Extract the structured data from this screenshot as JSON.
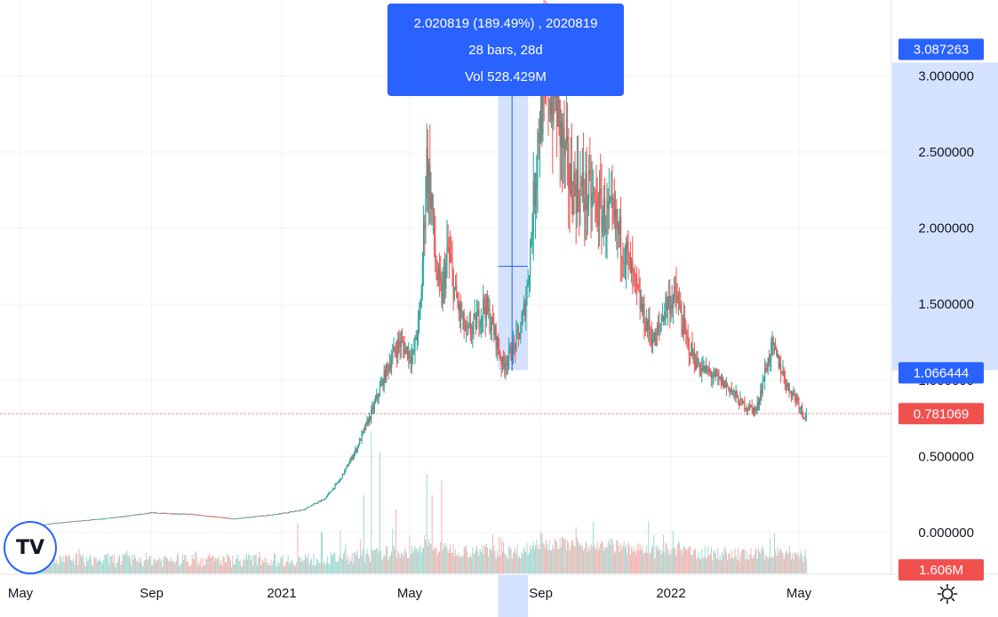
{
  "chart_data": {
    "type": "candlestick",
    "price_axis": {
      "ticks": [
        "3.000000",
        "2.500000",
        "2.000000",
        "1.500000",
        "1.000000",
        "0.500000",
        "0.000000"
      ],
      "tick_values": [
        3.0,
        2.5,
        2.0,
        1.5,
        1.0,
        0.5,
        0.0
      ],
      "ylim": [
        -0.22,
        3.35
      ]
    },
    "time_axis": {
      "labels": [
        "May",
        "Sep",
        "2021",
        "May",
        "Sep",
        "2022",
        "May"
      ],
      "label_days": [
        0,
        123,
        245,
        365,
        488,
        610,
        730
      ]
    },
    "price_path": [
      [
        0,
        0.03
      ],
      [
        30,
        0.06
      ],
      [
        60,
        0.08
      ],
      [
        90,
        0.1
      ],
      [
        123,
        0.13
      ],
      [
        160,
        0.12
      ],
      [
        200,
        0.09
      ],
      [
        240,
        0.12
      ],
      [
        265,
        0.15
      ],
      [
        285,
        0.22
      ],
      [
        300,
        0.35
      ],
      [
        315,
        0.55
      ],
      [
        330,
        0.8
      ],
      [
        345,
        1.1
      ],
      [
        355,
        1.25
      ],
      [
        362,
        1.2
      ],
      [
        368,
        1.15
      ],
      [
        375,
        1.45
      ],
      [
        381,
        2.45
      ],
      [
        385,
        2.2
      ],
      [
        390,
        1.7
      ],
      [
        395,
        1.55
      ],
      [
        401,
        1.85
      ],
      [
        408,
        1.55
      ],
      [
        418,
        1.3
      ],
      [
        425,
        1.35
      ],
      [
        435,
        1.5
      ],
      [
        445,
        1.3
      ],
      [
        452,
        1.1
      ],
      [
        462,
        1.2
      ],
      [
        470,
        1.35
      ],
      [
        475,
        1.6
      ],
      [
        480,
        2.05
      ],
      [
        485,
        2.6
      ],
      [
        490,
        2.9
      ],
      [
        496,
        2.95
      ],
      [
        502,
        2.85
      ],
      [
        508,
        2.55
      ],
      [
        515,
        2.3
      ],
      [
        525,
        2.25
      ],
      [
        535,
        2.2
      ],
      [
        545,
        2.1
      ],
      [
        555,
        2.05
      ],
      [
        565,
        1.9
      ],
      [
        575,
        1.65
      ],
      [
        585,
        1.4
      ],
      [
        595,
        1.25
      ],
      [
        605,
        1.5
      ],
      [
        615,
        1.55
      ],
      [
        625,
        1.25
      ],
      [
        635,
        1.1
      ],
      [
        645,
        1.05
      ],
      [
        655,
        1.0
      ],
      [
        665,
        0.95
      ],
      [
        675,
        0.85
      ],
      [
        685,
        0.82
      ],
      [
        690,
        0.8
      ],
      [
        698,
        1.05
      ],
      [
        705,
        1.22
      ],
      [
        712,
        1.1
      ],
      [
        720,
        0.95
      ],
      [
        728,
        0.88
      ],
      [
        734,
        0.78
      ],
      [
        737,
        0.781
      ]
    ],
    "current_price": 0.781069,
    "current_price_label": "0.781069",
    "volume_label": "1.606M",
    "volume_peaks": [
      [
        260,
        0.35
      ],
      [
        300,
        0.3
      ],
      [
        322,
        0.55
      ],
      [
        329,
        1.0
      ],
      [
        337,
        0.85
      ],
      [
        352,
        0.45
      ],
      [
        381,
        0.7
      ],
      [
        386,
        0.55
      ],
      [
        395,
        0.65
      ],
      [
        488,
        0.3
      ],
      [
        596,
        0.2
      ]
    ],
    "measure": {
      "start_day": 448,
      "end_day": 476,
      "start_price": 1.066444,
      "end_price": 3.087263,
      "bottom_label": "1.066444",
      "top_label": "3.087263",
      "line1": "2.020819 (189.49%) , 2020819",
      "line2": "28 bars, 28d",
      "line3": "Vol 528.429M"
    },
    "colors": {
      "up": "#26a69a",
      "down": "#ef5350",
      "up_volume": "#9fd9d2",
      "down_volume": "#f6b0ad",
      "accent": "#2962ff",
      "range_fill": "#d5e2ff",
      "last_price": "#f0514f",
      "grid": "#f0f3fa"
    }
  },
  "logo": {
    "text": "TV",
    "icon": "tradingview-logo-icon"
  },
  "settings": {
    "icon": "settings-gear-icon"
  }
}
